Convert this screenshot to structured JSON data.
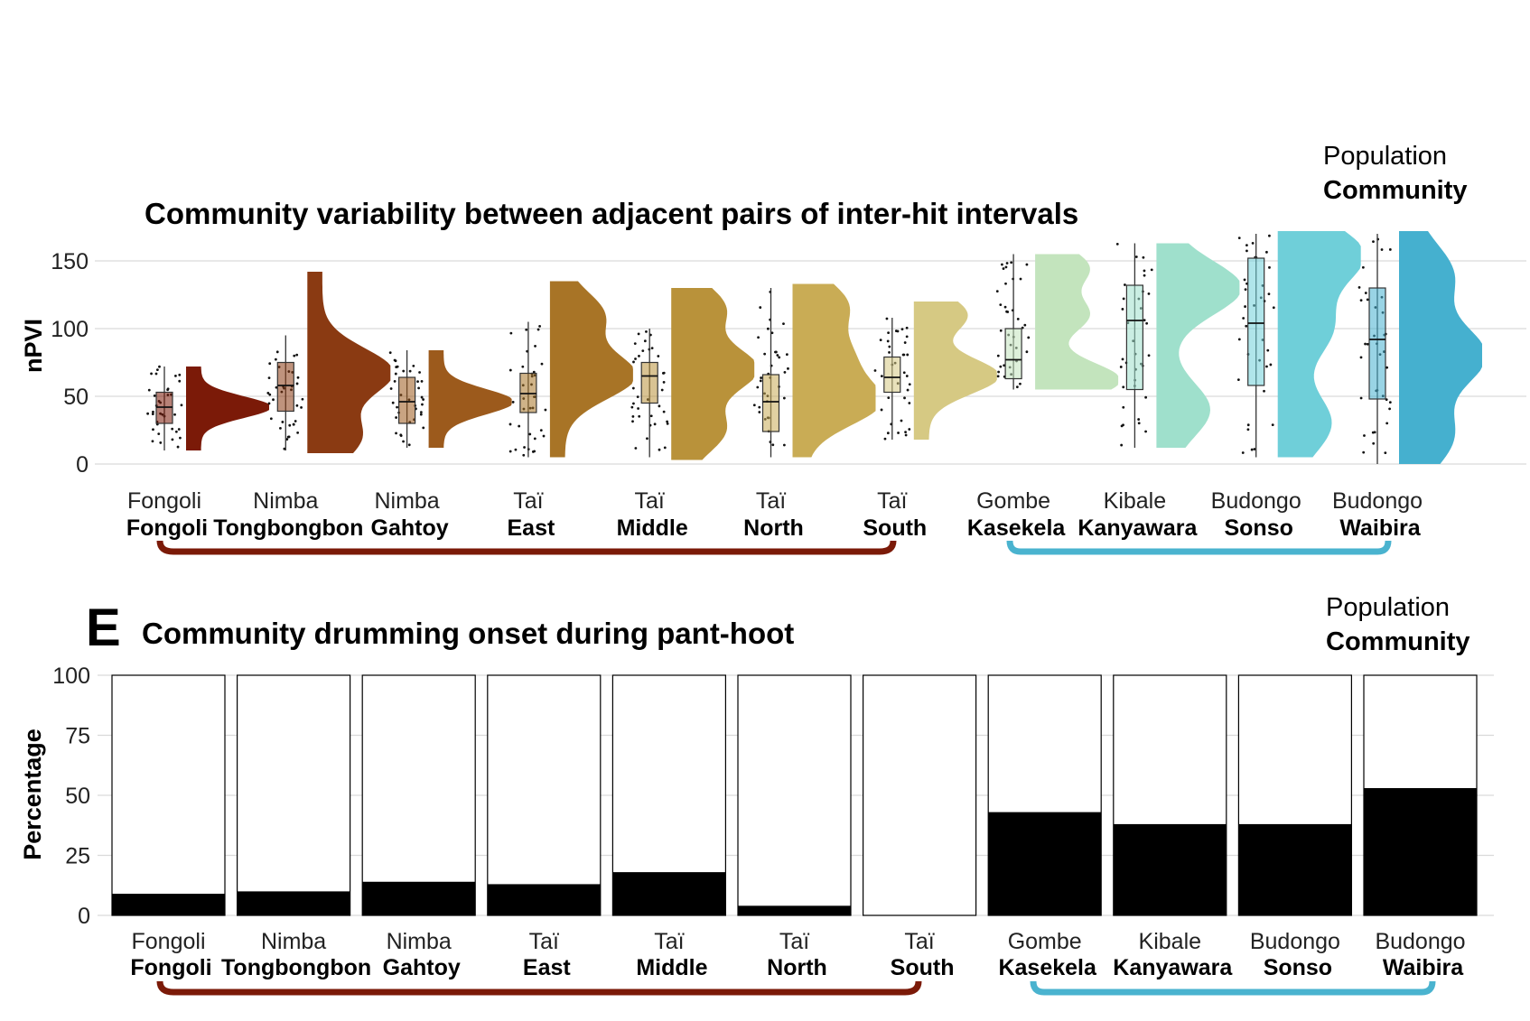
{
  "chart_data": [
    {
      "type": "raincloud",
      "title": "Community variability between adjacent pairs of inter-hit intervals",
      "ylabel": "nPVI",
      "ylim": [
        0,
        165
      ],
      "yticks": [
        0,
        50,
        100,
        150
      ],
      "legend": {
        "population_label": "Population",
        "community_label": "Community"
      },
      "categories": [
        {
          "population": "Fongoli",
          "community": "Fongoli",
          "color": "#7b1a08",
          "group": "west",
          "box": {
            "min": 10,
            "q1": 30,
            "median": 42,
            "q3": 53,
            "max": 72
          },
          "density_range": [
            10,
            72
          ],
          "density_peaks": [
            42
          ]
        },
        {
          "population": "Nimba",
          "community": "Tongbongbon",
          "color": "#8a3a12",
          "group": "west",
          "box": {
            "min": 10,
            "q1": 39,
            "median": 58,
            "q3": 75,
            "max": 95
          },
          "density_range": [
            8,
            142
          ],
          "density_peaks": [
            68,
            20
          ]
        },
        {
          "population": "Nimba",
          "community": "Gahtoy",
          "color": "#9c5a1c",
          "group": "west",
          "box": {
            "min": 12,
            "q1": 30,
            "median": 46,
            "q3": 64,
            "max": 84
          },
          "density_range": [
            12,
            84
          ],
          "density_peaks": [
            46
          ]
        },
        {
          "population": "Taï",
          "community": "East",
          "color": "#a87426",
          "group": "west",
          "box": {
            "min": 5,
            "q1": 38,
            "median": 52,
            "q3": 67,
            "max": 105
          },
          "density_range": [
            5,
            135
          ],
          "density_peaks": [
            65,
            110
          ]
        },
        {
          "population": "Taï",
          "community": "Middle",
          "color": "#b9923a",
          "group": "west",
          "box": {
            "min": 5,
            "q1": 45,
            "median": 65,
            "q3": 75,
            "max": 100
          },
          "density_range": [
            3,
            130
          ],
          "density_peaks": [
            70,
            25,
            115
          ]
        },
        {
          "population": "Taï",
          "community": "North",
          "color": "#c9ac55",
          "group": "west",
          "box": {
            "min": 5,
            "q1": 24,
            "median": 46,
            "q3": 66,
            "max": 130
          },
          "density_range": [
            5,
            133
          ],
          "density_peaks": [
            45,
            80,
            118
          ]
        },
        {
          "population": "Taï",
          "community": "South",
          "color": "#d6c983",
          "group": "west",
          "box": {
            "min": 18,
            "q1": 53,
            "median": 64,
            "q3": 79,
            "max": 108
          },
          "density_range": [
            18,
            120
          ],
          "density_peaks": [
            65,
            110
          ]
        },
        {
          "population": "Gombe",
          "community": "Kasekela",
          "color": "#c3e4bd",
          "group": "east",
          "box": {
            "min": 55,
            "q1": 63,
            "median": 77,
            "q3": 100,
            "max": 155
          },
          "density_range": [
            55,
            155
          ],
          "density_peaks": [
            62,
            110,
            145
          ]
        },
        {
          "population": "Kibale",
          "community": "Kanyawara",
          "color": "#9fe0cc",
          "group": "east",
          "box": {
            "min": 12,
            "q1": 55,
            "median": 106,
            "q3": 132,
            "max": 163
          },
          "density_range": [
            12,
            163
          ],
          "density_peaks": [
            130,
            40
          ]
        },
        {
          "population": "Budongo",
          "community": "Sonso",
          "color": "#6fcfd9",
          "group": "east",
          "box": {
            "min": 5,
            "q1": 58,
            "median": 104,
            "q3": 152,
            "max": 170
          },
          "density_range": [
            5,
            172
          ],
          "density_peaks": [
            155,
            100,
            30
          ]
        },
        {
          "population": "Budongo",
          "community": "Waibira",
          "color": "#45b0cf",
          "group": "east",
          "box": {
            "min": 0,
            "q1": 48,
            "median": 92,
            "q3": 130,
            "max": 170
          },
          "density_range": [
            0,
            172
          ],
          "density_peaks": [
            80,
            140,
            20
          ]
        }
      ]
    },
    {
      "type": "stacked_bar",
      "panel_label": "E",
      "title": "Community drumming onset during pant-hoot",
      "ylabel": "Percentage",
      "ylim": [
        0,
        100
      ],
      "yticks": [
        0,
        25,
        50,
        75,
        100
      ],
      "legend": {
        "population_label": "Population",
        "community_label": "Community"
      },
      "categories": [
        {
          "population": "Fongoli",
          "community": "Fongoli",
          "value": 9,
          "group": "west"
        },
        {
          "population": "Nimba",
          "community": "Tongbongbon",
          "value": 10,
          "group": "west"
        },
        {
          "population": "Nimba",
          "community": "Gahtoy",
          "value": 14,
          "group": "west"
        },
        {
          "population": "Taï",
          "community": "East",
          "value": 13,
          "group": "west"
        },
        {
          "population": "Taï",
          "community": "Middle",
          "value": 18,
          "group": "west"
        },
        {
          "population": "Taï",
          "community": "North",
          "value": 4,
          "group": "west"
        },
        {
          "population": "Taï",
          "community": "South",
          "value": 0,
          "group": "west"
        },
        {
          "population": "Gombe",
          "community": "Kasekela",
          "value": 43,
          "group": "east"
        },
        {
          "population": "Kibale",
          "community": "Kanyawara",
          "value": 38,
          "group": "east"
        },
        {
          "population": "Budongo",
          "community": "Sonso",
          "value": 38,
          "group": "east"
        },
        {
          "population": "Budongo",
          "community": "Waibira",
          "value": 53,
          "group": "east"
        }
      ],
      "colors": {
        "filled": "#000000",
        "empty": "#ffffff"
      }
    }
  ],
  "bracket_colors": {
    "west": "#7b1a08",
    "east": "#4ab3cf"
  }
}
